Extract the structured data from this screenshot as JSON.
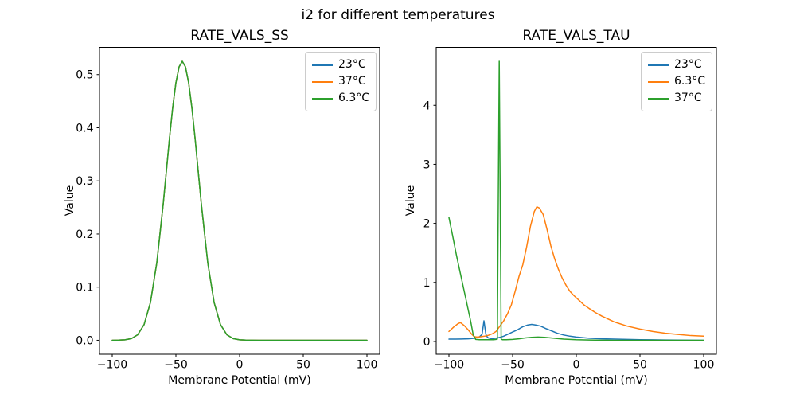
{
  "figure": {
    "title": "i2 for different temperatures",
    "background": "#ffffff"
  },
  "colors": {
    "blue": "#1f77b4",
    "orange": "#ff7f0e",
    "green": "#2ca02c",
    "axis": "#000000",
    "legend_border": "#cccccc"
  },
  "chart_data": [
    {
      "type": "line",
      "title": "RATE_VALS_SS",
      "xlabel": "Membrane Potential (mV)",
      "ylabel": "Value",
      "xlim": [
        -110,
        110
      ],
      "ylim": [
        -0.0263,
        0.5513
      ],
      "xticks": [
        -100,
        -50,
        0,
        50,
        100
      ],
      "xtick_labels": [
        "−100",
        "−50",
        "0",
        "50",
        "100"
      ],
      "yticks": [
        0.0,
        0.1,
        0.2,
        0.3,
        0.4,
        0.5
      ],
      "ytick_labels": [
        "0.0",
        "0.1",
        "0.2",
        "0.3",
        "0.4",
        "0.5"
      ],
      "grid": false,
      "legend_position": "upper right",
      "legend": [
        {
          "label": "23°C",
          "color": "#1f77b4"
        },
        {
          "label": "37°C",
          "color": "#ff7f0e"
        },
        {
          "label": "6.3°C",
          "color": "#2ca02c"
        }
      ],
      "series": [
        {
          "name": "23°C",
          "color": "#1f77b4",
          "x": [
            -100,
            -95,
            -90,
            -85,
            -80,
            -75,
            -70,
            -65,
            -60,
            -57.5,
            -55,
            -52.5,
            -50,
            -47.5,
            -45,
            -42.5,
            -40,
            -37.5,
            -35,
            -32.5,
            -30,
            -25,
            -20,
            -15,
            -10,
            -5,
            0,
            5,
            10,
            15,
            20,
            30,
            40,
            50,
            60,
            70,
            80,
            90,
            100
          ],
          "y": [
            0.0,
            0.0002,
            0.0008,
            0.0031,
            0.0104,
            0.0295,
            0.0711,
            0.146,
            0.2556,
            0.3184,
            0.3812,
            0.4385,
            0.4846,
            0.5146,
            0.525,
            0.5146,
            0.4846,
            0.4385,
            0.3812,
            0.3184,
            0.2556,
            0.146,
            0.0711,
            0.0295,
            0.0104,
            0.0031,
            0.0008,
            0.0002,
            0.0001,
            0,
            0,
            0,
            0,
            0,
            0,
            0,
            0,
            0,
            0
          ]
        },
        {
          "name": "37°C",
          "color": "#ff7f0e",
          "x": [
            -100,
            -95,
            -90,
            -85,
            -80,
            -75,
            -70,
            -65,
            -60,
            -57.5,
            -55,
            -52.5,
            -50,
            -47.5,
            -45,
            -42.5,
            -40,
            -37.5,
            -35,
            -32.5,
            -30,
            -25,
            -20,
            -15,
            -10,
            -5,
            0,
            5,
            10,
            15,
            20,
            30,
            40,
            50,
            60,
            70,
            80,
            90,
            100
          ],
          "y": [
            0.0,
            0.0002,
            0.0008,
            0.0031,
            0.0104,
            0.0295,
            0.0711,
            0.146,
            0.2556,
            0.3184,
            0.3812,
            0.4385,
            0.4846,
            0.5146,
            0.525,
            0.5146,
            0.4846,
            0.4385,
            0.3812,
            0.3184,
            0.2556,
            0.146,
            0.0711,
            0.0295,
            0.0104,
            0.0031,
            0.0008,
            0.0002,
            0.0001,
            0,
            0,
            0,
            0,
            0,
            0,
            0,
            0,
            0,
            0
          ]
        },
        {
          "name": "6.3°C",
          "color": "#2ca02c",
          "x": [
            -100,
            -95,
            -90,
            -85,
            -80,
            -75,
            -70,
            -65,
            -60,
            -57.5,
            -55,
            -52.5,
            -50,
            -47.5,
            -45,
            -42.5,
            -40,
            -37.5,
            -35,
            -32.5,
            -30,
            -25,
            -20,
            -15,
            -10,
            -5,
            0,
            5,
            10,
            15,
            20,
            30,
            40,
            50,
            60,
            70,
            80,
            90,
            100
          ],
          "y": [
            0.0,
            0.0002,
            0.0008,
            0.0031,
            0.0104,
            0.0295,
            0.0711,
            0.146,
            0.2556,
            0.3184,
            0.3812,
            0.4385,
            0.4846,
            0.5146,
            0.525,
            0.5146,
            0.4846,
            0.4385,
            0.3812,
            0.3184,
            0.2556,
            0.146,
            0.0711,
            0.0295,
            0.0104,
            0.0031,
            0.0008,
            0.0002,
            0.0001,
            0,
            0,
            0,
            0,
            0,
            0,
            0,
            0,
            0,
            0
          ]
        }
      ]
    },
    {
      "type": "line",
      "title": "RATE_VALS_TAU",
      "xlabel": "Membrane Potential (mV)",
      "ylabel": "Value",
      "xlim": [
        -110,
        110
      ],
      "ylim": [
        -0.216,
        4.981
      ],
      "xticks": [
        -100,
        -50,
        0,
        50,
        100
      ],
      "xtick_labels": [
        "−100",
        "−50",
        "0",
        "50",
        "100"
      ],
      "yticks": [
        0,
        1,
        2,
        3,
        4
      ],
      "ytick_labels": [
        "0",
        "1",
        "2",
        "3",
        "4"
      ],
      "grid": false,
      "legend_position": "upper right",
      "legend": [
        {
          "label": "23°C",
          "color": "#1f77b4"
        },
        {
          "label": "6.3°C",
          "color": "#ff7f0e"
        },
        {
          "label": "37°C",
          "color": "#2ca02c"
        }
      ],
      "series": [
        {
          "name": "23°C",
          "color": "#1f77b4",
          "x": [
            -100,
            -95,
            -90,
            -85,
            -82,
            -80,
            -78,
            -76,
            -74,
            -72.5,
            -71,
            -70,
            -69,
            -67,
            -65,
            -62,
            -60,
            -57,
            -54,
            -50,
            -46,
            -42,
            -38,
            -35,
            -32,
            -28,
            -24,
            -20,
            -15,
            -10,
            -5,
            0,
            5,
            10,
            20,
            30,
            40,
            50,
            60,
            70,
            80,
            90,
            100
          ],
          "y": [
            0.04,
            0.04,
            0.042,
            0.045,
            0.05,
            0.055,
            0.065,
            0.08,
            0.12,
            0.35,
            0.12,
            0.08,
            0.06,
            0.05,
            0.05,
            0.06,
            0.07,
            0.09,
            0.12,
            0.16,
            0.2,
            0.25,
            0.28,
            0.29,
            0.28,
            0.26,
            0.22,
            0.185,
            0.14,
            0.11,
            0.09,
            0.075,
            0.065,
            0.055,
            0.045,
            0.04,
            0.035,
            0.03,
            0.028,
            0.025,
            0.023,
            0.021,
            0.02
          ]
        },
        {
          "name": "6.3°C",
          "color": "#ff7f0e",
          "x": [
            -100,
            -96,
            -93,
            -91,
            -88,
            -85,
            -82,
            -80,
            -78,
            -75,
            -72,
            -69,
            -66,
            -63,
            -60,
            -57,
            -54,
            -51,
            -48,
            -45,
            -42,
            -39,
            -36,
            -33,
            -31,
            -29,
            -26,
            -23,
            -20,
            -17,
            -14,
            -11,
            -8,
            -5,
            -2,
            2,
            6,
            10,
            15,
            20,
            30,
            40,
            50,
            60,
            70,
            80,
            90,
            100
          ],
          "y": [
            0.17,
            0.25,
            0.3,
            0.32,
            0.27,
            0.2,
            0.12,
            0.08,
            0.075,
            0.08,
            0.09,
            0.105,
            0.13,
            0.17,
            0.26,
            0.35,
            0.47,
            0.62,
            0.85,
            1.1,
            1.3,
            1.6,
            1.95,
            2.2,
            2.28,
            2.26,
            2.15,
            1.9,
            1.62,
            1.4,
            1.22,
            1.07,
            0.95,
            0.85,
            0.78,
            0.7,
            0.62,
            0.56,
            0.49,
            0.43,
            0.33,
            0.26,
            0.21,
            0.17,
            0.14,
            0.12,
            0.1,
            0.09
          ]
        },
        {
          "name": "37°C",
          "color": "#2ca02c",
          "x": [
            -100,
            -97,
            -94,
            -91,
            -88,
            -85,
            -83,
            -81,
            -79,
            -76,
            -72,
            -68,
            -65,
            -63,
            -62,
            -60.5,
            -59,
            -58,
            -55,
            -50,
            -45,
            -40,
            -35,
            -30,
            -25,
            -20,
            -15,
            -10,
            -5,
            0,
            10,
            20,
            30,
            40,
            50,
            60,
            70,
            80,
            90,
            100
          ],
          "y": [
            2.1,
            1.78,
            1.45,
            1.15,
            0.85,
            0.55,
            0.35,
            0.12,
            0.035,
            0.03,
            0.03,
            0.03,
            0.03,
            0.035,
            0.04,
            4.745,
            0.04,
            0.03,
            0.03,
            0.035,
            0.045,
            0.06,
            0.07,
            0.075,
            0.07,
            0.06,
            0.05,
            0.04,
            0.035,
            0.03,
            0.025,
            0.022,
            0.02,
            0.02,
            0.02,
            0.02,
            0.02,
            0.02,
            0.02,
            0.02
          ]
        }
      ]
    }
  ]
}
